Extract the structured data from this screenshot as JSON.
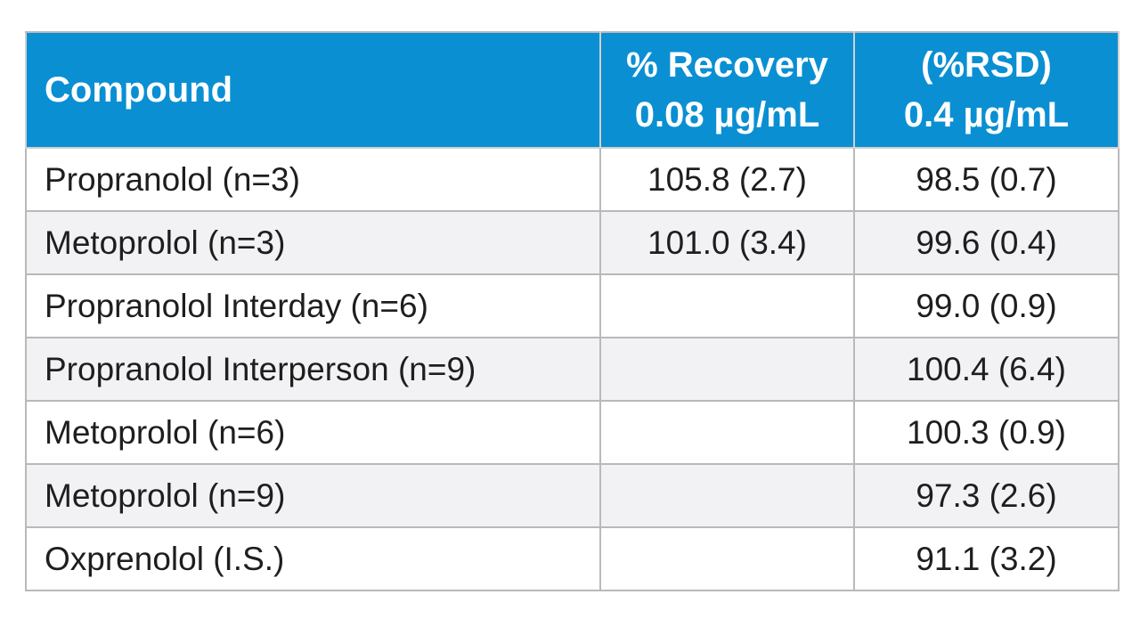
{
  "table": {
    "headers": {
      "compound": "Compound",
      "recovery_line1": "% Recovery",
      "recovery_line2": "0.08 µg/mL",
      "rsd_line1": "(%RSD)",
      "rsd_line2": "0.4 µg/mL"
    },
    "rows": [
      {
        "compound": "Propranolol (n=3)",
        "recovery_008": "105.8 (2.7)",
        "recovery_04": "98.5 (0.7)"
      },
      {
        "compound": "Metoprolol (n=3)",
        "recovery_008": "101.0 (3.4)",
        "recovery_04": "99.6 (0.4)"
      },
      {
        "compound": "Propranolol Interday (n=6)",
        "recovery_008": "",
        "recovery_04": "99.0 (0.9)"
      },
      {
        "compound": "Propranolol Interperson (n=9)",
        "recovery_008": "",
        "recovery_04": "100.4 (6.4)"
      },
      {
        "compound": "Metoprolol (n=6)",
        "recovery_008": "",
        "recovery_04": "100.3 (0.9)"
      },
      {
        "compound": "Metoprolol (n=9)",
        "recovery_008": "",
        "recovery_04": "97.3 (2.6)"
      },
      {
        "compound": "Oxprenolol (I.S.)",
        "recovery_008": "",
        "recovery_04": "91.1 (3.2)"
      }
    ]
  }
}
